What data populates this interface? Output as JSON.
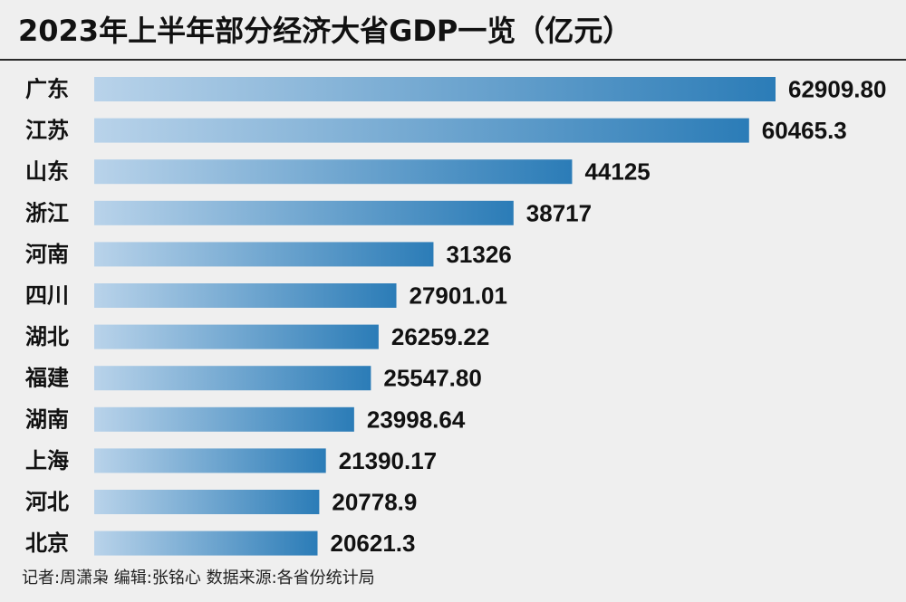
{
  "title": "2023年上半年部分经济大省GDP一览（亿元）",
  "credit": "记者:周潇枭  编辑:张铭心  数据来源:各省份统计局",
  "colors": {
    "bar_start": "#b9d3ea",
    "bar_end": "#2b7cb7",
    "rule": "#2a2a2a",
    "background": "#efefef"
  },
  "chart_data": {
    "type": "bar",
    "orientation": "horizontal",
    "title": "2023年上半年部分经济大省GDP一览（亿元）",
    "categories": [
      "广东",
      "江苏",
      "山东",
      "浙江",
      "河南",
      "四川",
      "湖北",
      "福建",
      "湖南",
      "上海",
      "河北",
      "北京"
    ],
    "values": [
      62909.8,
      60465.3,
      44125,
      38717,
      31326,
      27901.01,
      26259.22,
      25547.8,
      23998.64,
      21390.17,
      20778.9,
      20621.3
    ],
    "value_labels": [
      "62909.80",
      "60465.3",
      "44125",
      "38717",
      "31326",
      "27901.01",
      "26259.22",
      "25547.80",
      "23998.64",
      "21390.17",
      "20778.9",
      "20621.3"
    ],
    "xlim": [
      0,
      62909.8
    ],
    "grid": false,
    "legend": "none"
  }
}
